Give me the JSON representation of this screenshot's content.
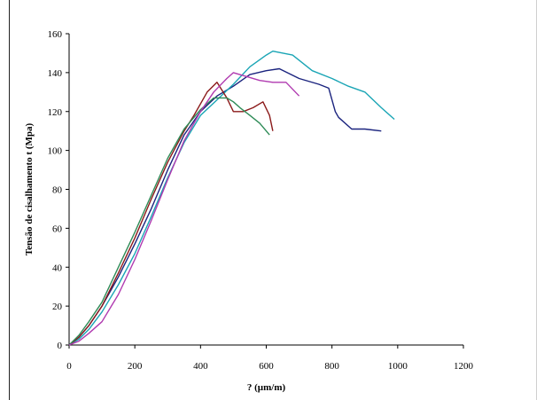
{
  "chart_data": {
    "type": "line",
    "xlabel": "? (µm/m)",
    "ylabel": "Tensão de cisalhamento t (Mpa)",
    "xlim": [
      0,
      1200
    ],
    "ylim": [
      0,
      160
    ],
    "xticks": [
      0,
      200,
      400,
      600,
      800,
      1000,
      1200
    ],
    "yticks": [
      0,
      20,
      40,
      60,
      80,
      100,
      120,
      140,
      160
    ],
    "grid": false,
    "legend": "none",
    "series": [
      {
        "color": "#1a237e",
        "x": [
          0,
          30,
          60,
          100,
          150,
          200,
          250,
          300,
          350,
          400,
          450,
          500,
          550,
          600,
          640,
          700,
          760,
          790,
          810,
          820,
          860,
          900,
          950
        ],
        "y": [
          0,
          4,
          10,
          20,
          35,
          52,
          70,
          90,
          108,
          120,
          128,
          133,
          139,
          141,
          142,
          137,
          134,
          132,
          120,
          117,
          111,
          111,
          110
        ]
      },
      {
        "color": "#1aa5b5",
        "x": [
          0,
          30,
          60,
          100,
          150,
          200,
          250,
          300,
          350,
          400,
          450,
          500,
          550,
          600,
          620,
          680,
          740,
          800,
          850,
          900,
          950,
          990
        ],
        "y": [
          0,
          3,
          8,
          17,
          31,
          47,
          66,
          86,
          104,
          118,
          126,
          134,
          143,
          149,
          151,
          149,
          141,
          137,
          133,
          130,
          122,
          116
        ]
      },
      {
        "color": "#8b1a1a",
        "x": [
          0,
          30,
          60,
          100,
          150,
          200,
          250,
          300,
          350,
          380,
          420,
          450,
          480,
          500,
          530,
          560,
          590,
          610,
          620
        ],
        "y": [
          0,
          4,
          10,
          20,
          37,
          55,
          75,
          94,
          110,
          118,
          130,
          135,
          127,
          120,
          120,
          122,
          125,
          118,
          110
        ]
      },
      {
        "color": "#2e8b57",
        "x": [
          0,
          30,
          60,
          100,
          150,
          200,
          250,
          300,
          350,
          400,
          440,
          480,
          500,
          520,
          550,
          580,
          610
        ],
        "y": [
          0,
          5,
          12,
          22,
          40,
          58,
          77,
          96,
          111,
          121,
          127,
          127,
          125,
          122,
          118,
          114,
          108
        ]
      },
      {
        "color": "#b03ab0",
        "x": [
          0,
          30,
          60,
          100,
          150,
          200,
          250,
          300,
          350,
          400,
          440,
          480,
          500,
          540,
          580,
          620,
          660,
          700
        ],
        "y": [
          0,
          2,
          6,
          12,
          26,
          44,
          64,
          85,
          105,
          120,
          130,
          137,
          140,
          138,
          136,
          135,
          135,
          128
        ]
      }
    ]
  }
}
